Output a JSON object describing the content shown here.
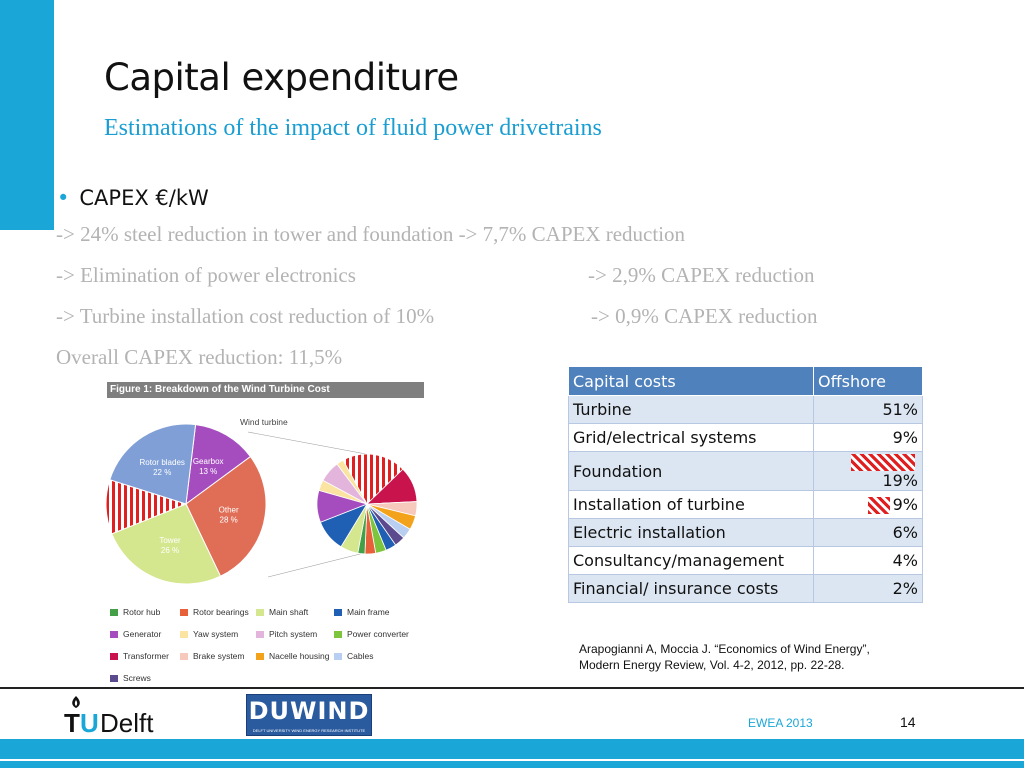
{
  "slide": {
    "title": "Capital expenditure",
    "subtitle": "Estimations of the impact of fluid power drivetrains",
    "bullet": "CAPEX  €/kW",
    "lines": [
      "-> 24% steel reduction in tower and foundation -> 7,7% CAPEX reduction",
      "-> Elimination of power electronics",
      "-> 2,9% CAPEX reduction",
      "-> Turbine installation cost reduction of 10%",
      "-> 0,9% CAPEX reduction",
      "Overall CAPEX reduction: 11,5%"
    ]
  },
  "chart_data": {
    "type": "pie",
    "banner": "Figure 1: Breakdown of the Wind Turbine Cost",
    "title": "Wind turbine",
    "slices": [
      {
        "label": "Gearbox",
        "value": 13,
        "value_text": "13 %",
        "color": "#a54dbf"
      },
      {
        "label": "Other",
        "value": 28,
        "value_text": "28 %",
        "color": "#e06e57"
      },
      {
        "label": "Tower",
        "value": 26,
        "value_text": "26 %",
        "color": "#d4e68e"
      },
      {
        "label": "",
        "value": 11,
        "value_text": "",
        "color": "#e02020"
      },
      {
        "label": "Rotor blades",
        "value": 22,
        "value_text": "22 %",
        "color": "#7f9fd6"
      }
    ],
    "legend": [
      {
        "label": "Rotor hub",
        "color": "#43a047"
      },
      {
        "label": "Rotor bearings",
        "color": "#e8603a"
      },
      {
        "label": "Main shaft",
        "color": "#d4e68e"
      },
      {
        "label": "Main frame",
        "color": "#1f5fb4"
      },
      {
        "label": "Generator",
        "color": "#a54dbf"
      },
      {
        "label": "Yaw system",
        "color": "#fbe3a1"
      },
      {
        "label": "Pitch system",
        "color": "#e3b5dc"
      },
      {
        "label": "Power converter",
        "color": "#7cc53d"
      },
      {
        "label": "Transformer",
        "color": "#c8134c"
      },
      {
        "label": "Brake system",
        "color": "#f7c9bd"
      },
      {
        "label": "Nacelle housing",
        "color": "#f3a21c"
      },
      {
        "label": "Cables",
        "color": "#b9cff1"
      },
      {
        "label": "Screws",
        "color": "#5c4a8e"
      }
    ]
  },
  "table": {
    "headers": [
      "Capital costs",
      "Offshore"
    ],
    "rows": [
      {
        "label": "Turbine",
        "value": "51%",
        "hatch": 0
      },
      {
        "label": "Grid/electrical systems",
        "value": "9%",
        "hatch": 0
      },
      {
        "label": "Foundation",
        "value": "19%",
        "hatch": 1
      },
      {
        "label": "Installation of turbine",
        "value": "9%",
        "hatch": 0.35
      },
      {
        "label": "Electric installation",
        "value": "6%",
        "hatch": 0
      },
      {
        "label": "Consultancy/management",
        "value": "4%",
        "hatch": 0
      },
      {
        "label": "Financial/ insurance costs",
        "value": "2%",
        "hatch": 0
      }
    ]
  },
  "citation": {
    "line1": "Arapogianni A, Moccia J.  “Economics of Wind Energy”,",
    "line2": "Modern Energy Review, Vol. 4-2, 2012, pp. 22-28."
  },
  "footer": {
    "logo_tu": "TUDelft",
    "logo_duwind": "DUWIND",
    "duwind_tagline": "DELFT UNIVERSITY WIND ENERGY RESEARCH INSTITUTE",
    "event": "EWEA 2013",
    "page": "14"
  },
  "colors": {
    "accent": "#1aa7d8",
    "table_header": "#4f81bd",
    "table_band": "#dce6f2",
    "hatch": "#e02020"
  }
}
